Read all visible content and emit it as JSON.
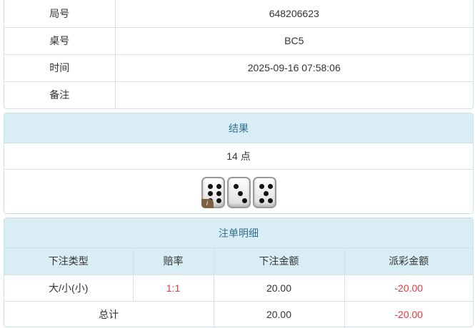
{
  "info": {
    "rows": [
      {
        "label": "局号",
        "value": "648206623"
      },
      {
        "label": "桌号",
        "value": "BC5"
      },
      {
        "label": "时间",
        "value": "2025-09-16 07:58:06"
      },
      {
        "label": "备注",
        "value": ""
      }
    ]
  },
  "result": {
    "title": "结果",
    "points": "14 点",
    "dice": [
      6,
      3,
      5
    ],
    "badge": "i"
  },
  "bets": {
    "title": "注单明细",
    "headers": [
      "下注类型",
      "赔率",
      "下注金额",
      "派彩金额"
    ],
    "rows": [
      {
        "type": "大/小(小)",
        "odds": "1:1",
        "amount": "20.00",
        "payout": "-20.00"
      }
    ],
    "total": {
      "label": "总计",
      "amount": "20.00",
      "payout": "-20.00"
    },
    "colors": {
      "negative": "#e4393c",
      "header_bg": "#d9edf7"
    }
  }
}
